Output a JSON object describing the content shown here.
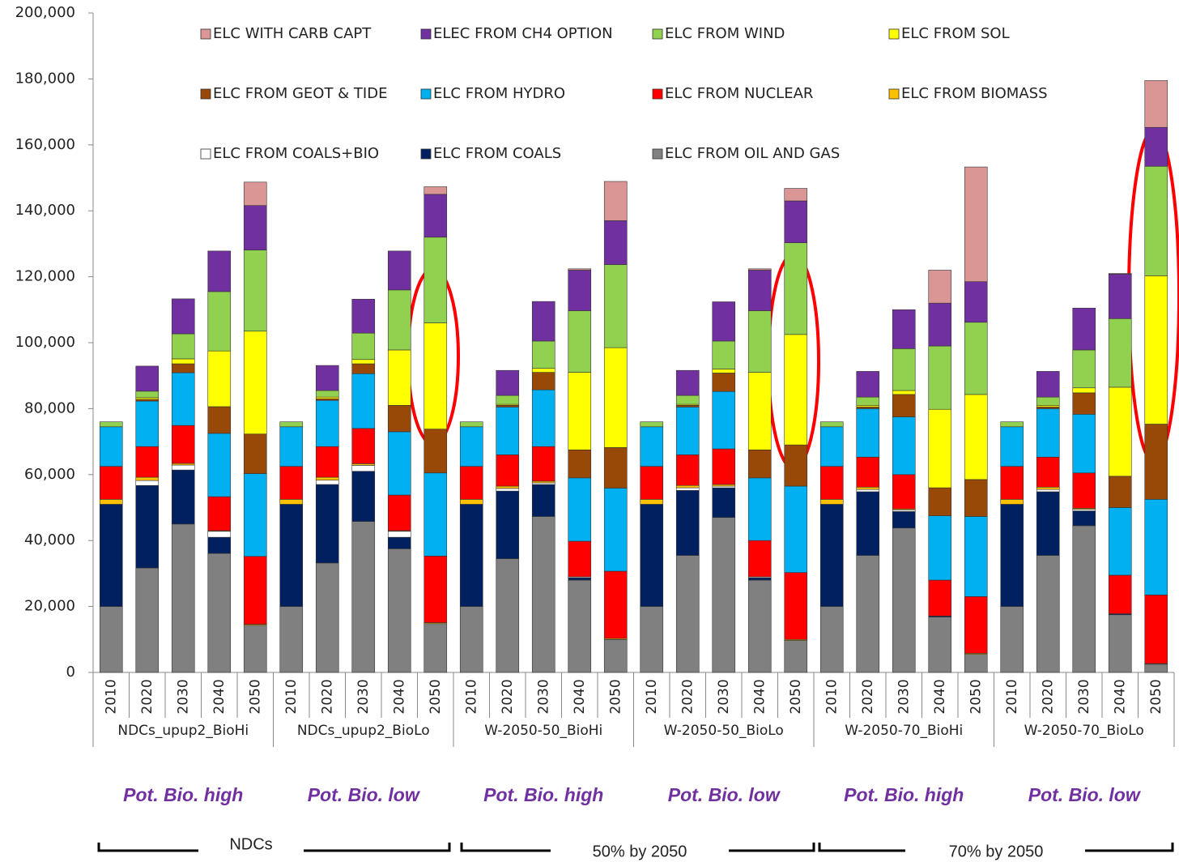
{
  "chart_data": {
    "type": "stacked_bar",
    "categories": [
      "2010",
      "2020",
      "2030",
      "2040",
      "2050",
      "2010",
      "2020",
      "2030",
      "2040",
      "2050",
      "2010",
      "2020",
      "2030",
      "2040",
      "2050",
      "2010",
      "2020",
      "2030",
      "2040",
      "2050",
      "2010",
      "2020",
      "2030",
      "2040",
      "2050",
      "2010",
      "2020",
      "2030",
      "2040",
      "2050"
    ],
    "groups": [
      "NDCs_upup2_BioHi",
      "NDCs_upup2_BioLo",
      "W-2050-50_BioHi",
      "W-2050-50_BioLo",
      "W-2050-70_BioHi",
      "W-2050-70_BioLo"
    ],
    "annotations": [
      "Pot. Bio. high",
      "Pot. Bio. low",
      "Pot. Bio. high",
      "Pot. Bio. low",
      "Pot. Bio. high",
      "Pot. Bio. low"
    ],
    "bracket_labels": [
      "NDCs",
      "50% by 2050",
      "70% by 2050"
    ],
    "ylim": [
      0,
      200000
    ],
    "yticks": [
      0,
      {
        "value": 20000,
        "label": "20,000"
      },
      {
        "value": 40000,
        "label": "40,000"
      },
      {
        "value": 60000,
        "label": "60,000"
      },
      {
        "value": 80000,
        "label": "80,000"
      },
      {
        "value": 100000,
        "label": "100,000"
      },
      {
        "value": 120000,
        "label": "120,000"
      },
      {
        "value": 140000,
        "label": "140,000"
      },
      {
        "value": 160000,
        "label": "160,000"
      },
      {
        "value": 180000,
        "label": "180,000"
      },
      {
        "value": 200000,
        "label": "200,000"
      }
    ],
    "grid": false,
    "series": [
      {
        "name": "ELC FROM OIL AND GAS",
        "color": "#808080",
        "values": [
          20000,
          31700,
          45000,
          36100,
          14300,
          20000,
          33200,
          45800,
          37500,
          14800,
          20000,
          34500,
          47300,
          28000,
          10000,
          20000,
          35500,
          47000,
          28000,
          9700,
          20000,
          35500,
          43800,
          16800,
          5500,
          20000,
          35500,
          44500,
          17500,
          2500
        ]
      },
      {
        "name": "ELC FROM COALS",
        "color": "#002060",
        "values": [
          31000,
          25000,
          16400,
          4900,
          0,
          31000,
          23800,
          15200,
          3500,
          0,
          31000,
          20500,
          9700,
          700,
          0,
          31000,
          19700,
          9000,
          700,
          0,
          31000,
          19300,
          5000,
          300,
          0,
          31000,
          19300,
          4500,
          300,
          0
        ]
      },
      {
        "name": "ELC FROM COALS+BIO",
        "color": "#ffffff",
        "values": [
          0,
          1500,
          1500,
          1800,
          0,
          0,
          1300,
          1800,
          1800,
          0,
          0,
          800,
          500,
          300,
          0,
          0,
          800,
          500,
          300,
          0,
          0,
          700,
          500,
          0,
          0,
          0,
          700,
          500,
          0,
          0
        ]
      },
      {
        "name": "ELC FROM BIOMASS",
        "color": "#ffc000",
        "values": [
          1500,
          1000,
          500,
          200,
          300,
          1500,
          900,
          500,
          200,
          300,
          1500,
          700,
          500,
          0,
          300,
          1500,
          700,
          500,
          0,
          300,
          1500,
          700,
          300,
          0,
          300,
          1500,
          700,
          300,
          0,
          200
        ]
      },
      {
        "name": "ELC FROM NUCLEAR",
        "color": "#ff0000",
        "values": [
          10000,
          9300,
          11500,
          10300,
          20600,
          10000,
          9300,
          10700,
          10800,
          20200,
          10000,
          9500,
          10500,
          10800,
          20400,
          10000,
          9300,
          10800,
          11000,
          20300,
          10000,
          9100,
          10400,
          10900,
          17200,
          10000,
          9100,
          10700,
          11700,
          20800
        ]
      },
      {
        "name": "ELC FROM HYDRO",
        "color": "#00b0f0",
        "values": [
          12000,
          13800,
          16000,
          19200,
          25100,
          12000,
          14000,
          16600,
          19200,
          25200,
          12000,
          14500,
          17200,
          19200,
          25200,
          12000,
          14500,
          17400,
          19000,
          26200,
          12000,
          14700,
          17500,
          19500,
          24300,
          12000,
          14700,
          17800,
          20500,
          29000
        ]
      },
      {
        "name": "ELC FROM GEOT & TIDE",
        "color": "#984807",
        "values": [
          0,
          500,
          2700,
          8100,
          12000,
          0,
          500,
          3000,
          8000,
          13300,
          0,
          500,
          5300,
          8500,
          12300,
          0,
          500,
          5600,
          8500,
          12500,
          0,
          500,
          6800,
          8500,
          11200,
          0,
          500,
          6500,
          9500,
          22800
        ]
      },
      {
        "name": "ELC FROM SOL",
        "color": "#ffff00",
        "values": [
          0,
          500,
          1500,
          16900,
          31200,
          0,
          500,
          1300,
          16800,
          32200,
          0,
          300,
          1200,
          23500,
          30300,
          0,
          300,
          1200,
          23500,
          33500,
          0,
          500,
          1200,
          23800,
          25800,
          0,
          500,
          1500,
          27000,
          45000
        ]
      },
      {
        "name": "ELC FROM WIND",
        "color": "#92d050",
        "values": [
          1500,
          2000,
          7600,
          18000,
          24600,
          1500,
          2000,
          8000,
          18200,
          26000,
          1500,
          2700,
          8300,
          18700,
          25200,
          1500,
          2700,
          8500,
          18700,
          27800,
          1500,
          2500,
          12700,
          19200,
          21900,
          1500,
          2500,
          11500,
          20800,
          33200
        ]
      },
      {
        "name": "ELEC FROM CH4 OPTION",
        "color": "#7030a0",
        "values": [
          0,
          7600,
          10600,
          12300,
          13500,
          0,
          7600,
          10300,
          11800,
          13000,
          0,
          7600,
          12000,
          12300,
          13300,
          0,
          7600,
          11900,
          12300,
          12700,
          0,
          7800,
          11800,
          13000,
          12300,
          0,
          7800,
          12700,
          13500,
          11800
        ]
      },
      {
        "name": "ELC WITH CARB CAPT",
        "color": "#d99694",
        "values": [
          0,
          0,
          0,
          0,
          7100,
          0,
          0,
          0,
          0,
          2300,
          0,
          0,
          0,
          400,
          11900,
          0,
          0,
          0,
          400,
          3800,
          0,
          0,
          0,
          10000,
          34800,
          0,
          0,
          0,
          200,
          14200
        ]
      }
    ]
  }
}
